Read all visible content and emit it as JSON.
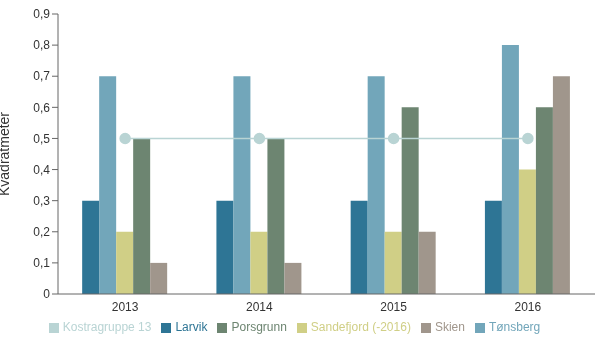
{
  "chart_data": {
    "type": "bar",
    "y_label": "Kvadratmeter",
    "categories": [
      "2013",
      "2014",
      "2015",
      "2016"
    ],
    "series": [
      {
        "name": "Larvik",
        "color": "#2e7595",
        "values": [
          0.3,
          0.3,
          0.3,
          0.3
        ]
      },
      {
        "name": "Tønsberg",
        "color": "#72a6ba",
        "values": [
          0.7,
          0.7,
          0.7,
          0.8
        ]
      },
      {
        "name": "Sandefjord (-2016)",
        "color": "#d0cf86",
        "values": [
          0.2,
          0.2,
          0.2,
          0.4
        ]
      },
      {
        "name": "Porsgrunn",
        "color": "#6d8571",
        "values": [
          0.5,
          0.5,
          0.6,
          0.6
        ]
      },
      {
        "name": "Skien",
        "color": "#a0968c",
        "values": [
          0.1,
          0.1,
          0.2,
          0.7
        ]
      },
      {
        "name": "Kostragruppe 13",
        "color": "#b9d4d4",
        "type": "line",
        "marker": "circle",
        "values": [
          0.5,
          0.5,
          0.5,
          0.5
        ]
      }
    ],
    "ylim": [
      0,
      0.9
    ],
    "yticks": [
      0,
      {
        "value": 0.1,
        "label": "0,1"
      },
      {
        "value": 0.2,
        "label": "0,2"
      },
      {
        "value": 0.3,
        "label": "0,3"
      },
      {
        "value": 0.4,
        "label": "0,4"
      },
      {
        "value": 0.5,
        "label": "0,5"
      },
      {
        "value": 0.6,
        "label": "0,6"
      },
      {
        "value": 0.7,
        "label": "0,7"
      },
      {
        "value": 0.8,
        "label": "0,8"
      },
      {
        "value": 0.9,
        "label": "0,9"
      }
    ],
    "grid": false,
    "legend": "bottom"
  }
}
